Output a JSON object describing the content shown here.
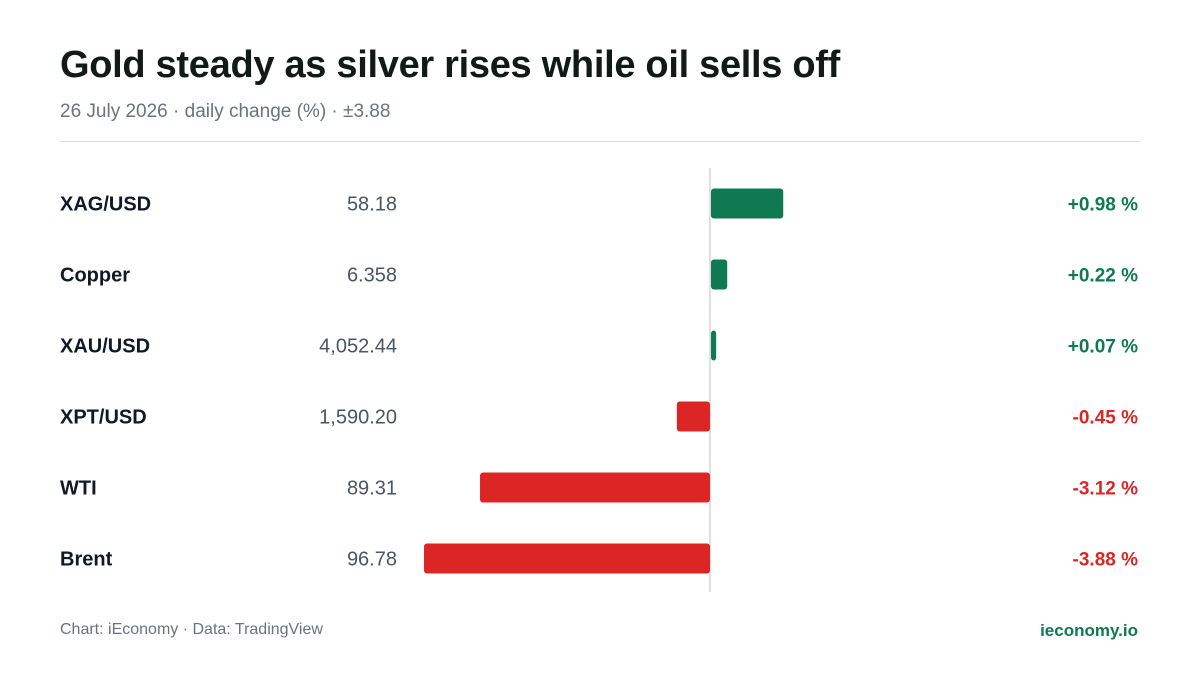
{
  "header": {
    "title": "Gold steady as silver rises while oil sells off",
    "subtitle": "26 July 2026 · daily change (%) · ±3.88"
  },
  "footer": {
    "credit": "Chart: iEconomy · Data: TradingView",
    "brand": "ieconomy.io"
  },
  "colors": {
    "positive": "#0f7a52",
    "negative": "#dc2626",
    "axis": "#d1d5db",
    "label": "#111827",
    "price": "#4b5563"
  },
  "chart_data": {
    "type": "bar",
    "orientation": "horizontal",
    "categories": [
      "XAG/USD",
      "Copper",
      "XAU/USD",
      "XPT/USD",
      "WTI",
      "Brent"
    ],
    "prices": [
      "58.18",
      "6.358",
      "4,052.44",
      "1,590.20",
      "89.31",
      "96.78"
    ],
    "values": [
      0.98,
      0.22,
      0.07,
      -0.45,
      -3.12,
      -3.88
    ],
    "value_labels": [
      "+0.98 %",
      "+0.22 %",
      "+0.07 %",
      "-0.45 %",
      "-3.12 %",
      "-3.88 %"
    ],
    "xlim": [
      -3.88,
      3.88
    ],
    "grid": false,
    "legend": "none"
  }
}
